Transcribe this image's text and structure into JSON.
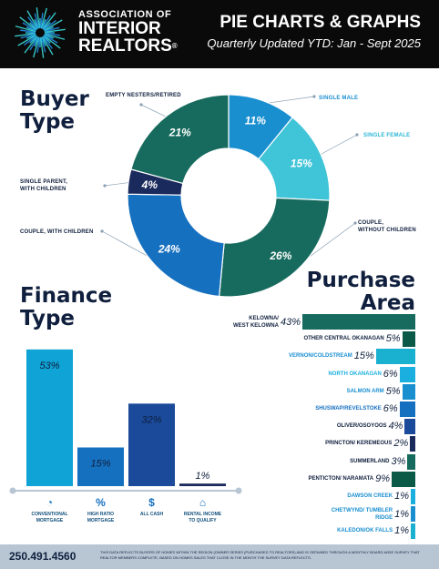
{
  "header": {
    "org_line1": "ASSOCIATION OF",
    "org_line2": "INTERIOR",
    "org_line3": "REALTORS",
    "reg_mark": "®",
    "title": "PIE CHARTS & GRAPHS",
    "subtitle": "Quarterly Updated YTD: Jan - Sept 2025"
  },
  "sections": {
    "buyer_line1": "Buyer",
    "buyer_line2": "Type",
    "finance_line1": "Finance",
    "finance_line2": "Type",
    "purchase_line1": "Purchase",
    "purchase_line2": "Area"
  },
  "colors": {
    "dark_teal": "#176b5e",
    "bright_blue": "#1a8fd0",
    "light_teal": "#40c4d8",
    "navy": "#1b2a5c",
    "mid_blue": "#1670c0",
    "deep_green": "#0b5a48",
    "royal_blue": "#1b4a9a"
  },
  "chart_data": [
    {
      "type": "pie",
      "title": "Buyer Type",
      "slices": [
        {
          "label": "SINGLE MALE",
          "value": 11,
          "display": "11%",
          "color": "#1a8fd0"
        },
        {
          "label": "SINGLE FEMALE",
          "value": 15,
          "display": "15%",
          "color": "#40c4d8"
        },
        {
          "label": "COUPLE, WITHOUT CHILDREN",
          "value": 26,
          "display": "26%",
          "color": "#176b5e"
        },
        {
          "label": "COUPLE, WITH CHILDREN",
          "value": 24,
          "display": "24%",
          "color": "#1670c0"
        },
        {
          "label": "SINGLE PARENT, WITH CHILDREN",
          "value": 4,
          "display": "4%",
          "color": "#1b2a5c"
        },
        {
          "label": "EMPTY NESTERS/RETIRED",
          "value": 21,
          "display": "21%",
          "color": "#176b5e"
        }
      ],
      "label_lines": {
        "single_male": "SINGLE MALE",
        "single_female": "SINGLE FEMALE",
        "couple_no_children_1": "COUPLE,",
        "couple_no_children_2": "WITHOUT CHILDREN",
        "couple_children": "COUPLE, WITH CHILDREN",
        "single_parent_1": "SINGLE PARENT,",
        "single_parent_2": "WITH CHILDREN",
        "empty_nesters": "EMPTY NESTERS/RETIRED"
      }
    },
    {
      "type": "bar",
      "title": "Finance Type",
      "categories": [
        "CONVENTIONAL MORTGAGE",
        "HIGH RATIO MORTGAGE",
        "ALL CASH",
        "RENTAL INCOME TO QUALIFY"
      ],
      "category_lines": [
        [
          "CONVENTIONAL",
          "MORTGAGE"
        ],
        [
          "HIGH RATIO",
          "MORTGAGE"
        ],
        [
          "ALL CASH",
          ""
        ],
        [
          "RENTAL INCOME",
          "TO QUALIFY"
        ]
      ],
      "values": [
        53,
        15,
        32,
        1
      ],
      "display": [
        "53%",
        "15%",
        "32%",
        "1%"
      ],
      "colors": [
        "#0fa3d6",
        "#1670c0",
        "#1b4a9a",
        "#1b2a5c"
      ],
      "icons": [
        "pie-icon",
        "percent-icon",
        "cash-icon",
        "house-key-icon"
      ],
      "ylim": [
        0,
        60
      ]
    },
    {
      "type": "bar",
      "orientation": "horizontal",
      "title": "Purchase Area",
      "categories": [
        "KELOWNA/ WEST KELOWNA",
        "OTHER CENTRAL OKANAGAN",
        "VERNON/COLDSTREAM",
        "NORTH OKANAGAN",
        "SALMON ARM",
        "SHUSWAP/REVELSTOKE",
        "OLIVER/OSOYOOS",
        "PRINCTON/ KEREMEOUS",
        "SUMMERLAND",
        "PENTICTON/ NARAMATA",
        "DAWSON CREEK",
        "CHETWYND/ TUMBLER RIDGE",
        "KALEDON/OK FALLS"
      ],
      "label_lines": [
        [
          "KELOWNA/",
          "WEST KELOWNA"
        ],
        [
          "OTHER CENTRAL OKANAGAN"
        ],
        [
          "VERNON/COLDSTREAM"
        ],
        [
          "NORTH OKANAGAN"
        ],
        [
          "SALMON ARM"
        ],
        [
          "SHUSWAP/REVELSTOKE"
        ],
        [
          "OLIVER/OSOYOOS"
        ],
        [
          "PRINCTON/ KEREMEOUS"
        ],
        [
          "SUMMERLAND"
        ],
        [
          "PENTICTON/ NARAMATA"
        ],
        [
          "DAWSON CREEK"
        ],
        [
          "CHETWYND/ TUMBLER",
          "RIDGE"
        ],
        [
          "KALEDON/OK FALLS"
        ]
      ],
      "values": [
        43,
        5,
        15,
        6,
        5,
        6,
        4,
        2,
        3,
        9,
        1,
        1,
        1
      ],
      "display": [
        "43%",
        "5%",
        "15%",
        "6%",
        "5%",
        "6%",
        "4%",
        "2%",
        "3%",
        "9%",
        "1%",
        "1%",
        "1%"
      ],
      "colors": [
        "#176b5e",
        "#0b5a48",
        "#1ab0d0",
        "#1aafde",
        "#1a8fd0",
        "#1670c0",
        "#1b4a9a",
        "#1b2a5c",
        "#176b5e",
        "#0b5a48",
        "#1aafde",
        "#1a8fd0",
        "#1ab0d0"
      ],
      "label_colors": [
        "#0f1f3d",
        "#0f1f3d",
        "#1a8fd0",
        "#1aafde",
        "#1a8fd0",
        "#1670c0",
        "#0f1f3d",
        "#0f1f3d",
        "#0f1f3d",
        "#0f1f3d",
        "#1a8fd0",
        "#1a8fd0",
        "#1a8fd0"
      ]
    }
  ],
  "footer": {
    "phone": "250.491.4560",
    "disclaimer": "THIS DATA REFLECTS BUYERS OF HOMES WITHIN THE REGION (OWNER SERIES (PURCHASED TO REALTORS) AND IS OBTAINED THROUGH A MONTHLY BOARD-WIDE SURVEY THAT REALTOR MEMBERS COMPLETE, BASED ON HOMES SALES THAT CLOSE IN THE MONTH THE SURVEY DATA REFLECTS."
  }
}
